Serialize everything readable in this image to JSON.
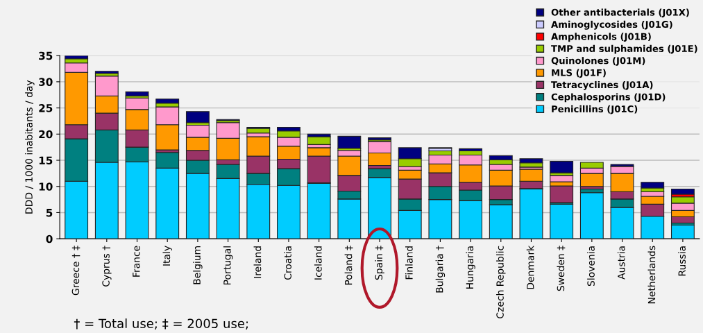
{
  "chart_data": {
    "type": "bar",
    "stacked": true,
    "ylabel": "DDD / 1000 inabitants / day",
    "categories": [
      "Greece † ‡",
      "Cyprus †",
      "France",
      "Italy",
      "Belgium",
      "Portugal",
      "Ireland",
      "Croatia",
      "Iceland",
      "Poland ‡",
      "Spain ‡",
      "Finland",
      "Bulgaria †",
      "Hungaria",
      "Czech Republic",
      "Denmark",
      "Sweden ‡",
      "Slovenia",
      "Austria",
      "Netherlands",
      "Russia"
    ],
    "series": [
      {
        "name": "Penicillins (J01C)",
        "color": "#00ccff",
        "values": [
          11.0,
          14.6,
          14.7,
          13.5,
          12.5,
          11.5,
          10.4,
          10.2,
          10.6,
          7.6,
          11.7,
          5.4,
          7.5,
          7.3,
          6.5,
          9.5,
          6.6,
          8.8,
          6.0,
          4.3,
          2.6
        ]
      },
      {
        "name": "Cephalosporins (J01D)",
        "color": "#008080",
        "values": [
          8.1,
          6.2,
          2.8,
          3.0,
          2.5,
          2.7,
          2.1,
          3.2,
          0.1,
          1.5,
          1.7,
          2.2,
          2.5,
          2.0,
          1.0,
          0.1,
          0.3,
          0.7,
          1.6,
          null,
          0.4
        ]
      },
      {
        "name": "Tetracyclines (J01A)",
        "color": "#993366",
        "values": [
          2.7,
          3.2,
          3.3,
          0.5,
          1.9,
          0.9,
          3.3,
          1.8,
          5.1,
          3.0,
          0.6,
          3.8,
          2.6,
          1.5,
          2.6,
          1.4,
          3.2,
          0.5,
          1.4,
          2.3,
          1.2
        ]
      },
      {
        "name": "MLS (J01F)",
        "color": "#ff9900",
        "values": [
          10.0,
          3.3,
          3.9,
          4.8,
          2.5,
          4.1,
          3.7,
          2.5,
          1.6,
          3.7,
          2.4,
          1.7,
          1.7,
          3.3,
          3.0,
          2.3,
          0.8,
          2.5,
          3.5,
          1.5,
          1.2
        ]
      },
      {
        "name": "Quinolones (J01M)",
        "color": "#ff99cc",
        "values": [
          1.8,
          3.8,
          2.2,
          3.4,
          2.3,
          3.0,
          0.7,
          1.7,
          0.6,
          1.1,
          2.2,
          0.7,
          1.7,
          1.9,
          1.1,
          0.4,
          1.2,
          1.0,
          1.3,
          0.9,
          1.4
        ]
      },
      {
        "name": "TMP and sulphamides (J01E)",
        "color": "#99cc00",
        "values": [
          0.8,
          0.5,
          0.4,
          0.7,
          0.5,
          0.4,
          0.9,
          1.2,
          1.5,
          0.4,
          0.3,
          1.5,
          0.8,
          0.8,
          0.9,
          0.8,
          0.5,
          1.1,
          0.1,
          0.7,
          1.2
        ]
      },
      {
        "name": "Amphenicols (J01B)",
        "color": "#ff0000",
        "values": [
          0,
          0,
          0,
          0,
          0,
          0,
          0,
          0,
          0,
          0,
          0,
          0,
          0,
          0,
          0,
          0,
          0,
          0,
          0,
          0,
          0.5
        ]
      },
      {
        "name": "Aminoglycosides (J01G)",
        "color": "#ccccff",
        "values": [
          0,
          0,
          0,
          0,
          0,
          0,
          0,
          0,
          0,
          0,
          0,
          0,
          0.5,
          0,
          0,
          0,
          0,
          0,
          0,
          0,
          0
        ]
      },
      {
        "name": "Other antibacterials (J01X)",
        "color": "#000080",
        "values": [
          0.6,
          0.4,
          0.8,
          0.8,
          2.1,
          0.2,
          0.2,
          0.7,
          0.5,
          2.3,
          0.4,
          2.1,
          0.1,
          0.4,
          0.8,
          0.8,
          2.2,
          0,
          0.3,
          1.1,
          1.0
        ]
      }
    ],
    "ylim": [
      0,
      35
    ],
    "yticks": [
      0,
      5,
      10,
      15,
      20,
      25,
      30,
      35
    ],
    "grid": "y",
    "legend": "top right",
    "annotations": [
      "† = Total use; ‡ = 2005 use;"
    ]
  }
}
